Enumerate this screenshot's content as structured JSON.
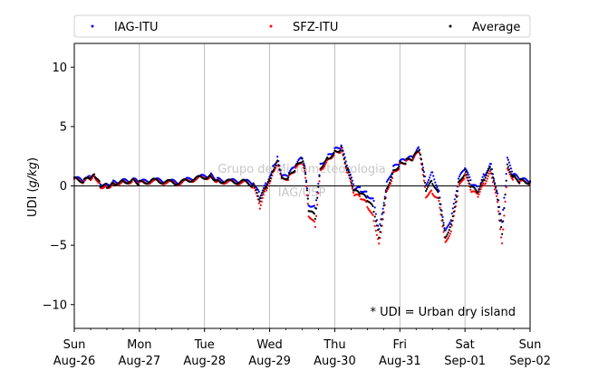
{
  "chart_data": {
    "type": "scatter",
    "ylabel": "UDI (g/kg)",
    "ylim": [
      -12,
      12
    ],
    "yticks": [
      -10,
      -5,
      0,
      5,
      10
    ],
    "xlim_days": [
      0,
      7
    ],
    "x_tick_labels": [
      {
        "day": "Sun",
        "date": "Aug-26"
      },
      {
        "day": "Mon",
        "date": "Aug-27"
      },
      {
        "day": "Tue",
        "date": "Aug-28"
      },
      {
        "day": "Wed",
        "date": "Aug-29"
      },
      {
        "day": "Thu",
        "date": "Aug-30"
      },
      {
        "day": "Fri",
        "date": "Aug-31"
      },
      {
        "day": "Sat",
        "date": "Sep-01"
      },
      {
        "day": "Sun",
        "date": "Sep-02"
      }
    ],
    "grid": "vertical",
    "legend_position": "top",
    "watermark": [
      "Grupo de Micrometeorologia",
      "IAG/USP"
    ],
    "annotation": "* UDI = Urban dry island",
    "series": [
      {
        "name": "IAG-ITU",
        "color": "#0000ff",
        "points": [
          [
            0.0,
            0.6
          ],
          [
            0.15,
            0.5
          ],
          [
            0.25,
            0.7
          ],
          [
            0.32,
            0.9
          ],
          [
            0.4,
            0.2
          ],
          [
            0.5,
            0.1
          ],
          [
            0.6,
            0.3
          ],
          [
            0.75,
            0.4
          ],
          [
            0.9,
            0.5
          ],
          [
            1.0,
            0.3
          ],
          [
            1.2,
            0.5
          ],
          [
            1.4,
            0.4
          ],
          [
            1.6,
            0.3
          ],
          [
            1.8,
            0.6
          ],
          [
            2.0,
            0.8
          ],
          [
            2.1,
            0.9
          ],
          [
            2.2,
            0.5
          ],
          [
            2.4,
            0.4
          ],
          [
            2.6,
            0.4
          ],
          [
            2.75,
            0.2
          ],
          [
            2.85,
            -0.8
          ],
          [
            2.95,
            0.2
          ],
          [
            3.0,
            0.8
          ],
          [
            3.05,
            1.6
          ],
          [
            3.12,
            2.3
          ],
          [
            3.2,
            0.7
          ],
          [
            3.3,
            1.0
          ],
          [
            3.4,
            1.7
          ],
          [
            3.5,
            2.4
          ],
          [
            3.55,
            1.3
          ],
          [
            3.6,
            -1.5
          ],
          [
            3.7,
            -1.8
          ],
          [
            3.78,
            1.8
          ],
          [
            3.9,
            2.5
          ],
          [
            4.0,
            3.0
          ],
          [
            4.1,
            3.3
          ],
          [
            4.2,
            1.5
          ],
          [
            4.3,
            -0.2
          ],
          [
            4.4,
            -0.3
          ],
          [
            4.5,
            -0.7
          ],
          [
            4.6,
            -1.2
          ],
          [
            4.68,
            -3.7
          ],
          [
            4.8,
            0.2
          ],
          [
            4.9,
            1.5
          ],
          [
            5.0,
            2.0
          ],
          [
            5.1,
            2.2
          ],
          [
            5.2,
            2.4
          ],
          [
            5.3,
            3.2
          ],
          [
            5.4,
            0.2
          ],
          [
            5.5,
            1.2
          ],
          [
            5.6,
            -0.5
          ],
          [
            5.7,
            -3.9
          ],
          [
            5.8,
            -2.5
          ],
          [
            5.9,
            0.5
          ],
          [
            6.0,
            1.5
          ],
          [
            6.1,
            0.2
          ],
          [
            6.2,
            -0.3
          ],
          [
            6.3,
            1.0
          ],
          [
            6.4,
            1.9
          ],
          [
            6.5,
            -0.7
          ],
          [
            6.57,
            -3.2
          ],
          [
            6.65,
            2.2
          ],
          [
            6.75,
            0.9
          ],
          [
            6.85,
            0.5
          ],
          [
            7.0,
            0.4
          ]
        ]
      },
      {
        "name": "SFZ-ITU",
        "color": "#ff0000",
        "points": [
          [
            0.0,
            0.5
          ],
          [
            0.15,
            0.4
          ],
          [
            0.25,
            0.6
          ],
          [
            0.32,
            0.8
          ],
          [
            0.4,
            0.0
          ],
          [
            0.5,
            -0.1
          ],
          [
            0.6,
            0.2
          ],
          [
            0.75,
            0.3
          ],
          [
            0.9,
            0.4
          ],
          [
            1.0,
            0.2
          ],
          [
            1.2,
            0.4
          ],
          [
            1.4,
            0.3
          ],
          [
            1.6,
            0.2
          ],
          [
            1.8,
            0.5
          ],
          [
            2.0,
            0.7
          ],
          [
            2.1,
            0.8
          ],
          [
            2.2,
            0.4
          ],
          [
            2.4,
            0.3
          ],
          [
            2.6,
            0.3
          ],
          [
            2.75,
            0.0
          ],
          [
            2.85,
            -1.8
          ],
          [
            2.95,
            -0.2
          ],
          [
            3.0,
            0.4
          ],
          [
            3.05,
            1.2
          ],
          [
            3.12,
            2.0
          ],
          [
            3.2,
            0.5
          ],
          [
            3.3,
            0.7
          ],
          [
            3.4,
            1.4
          ],
          [
            3.5,
            2.0
          ],
          [
            3.55,
            0.8
          ],
          [
            3.6,
            -2.4
          ],
          [
            3.7,
            -3.3
          ],
          [
            3.78,
            1.4
          ],
          [
            3.9,
            2.2
          ],
          [
            4.0,
            2.8
          ],
          [
            4.1,
            3.0
          ],
          [
            4.2,
            1.0
          ],
          [
            4.3,
            -0.8
          ],
          [
            4.4,
            -1.0
          ],
          [
            4.5,
            -1.6
          ],
          [
            4.6,
            -2.8
          ],
          [
            4.68,
            -4.8
          ],
          [
            4.8,
            -0.5
          ],
          [
            4.9,
            1.0
          ],
          [
            5.0,
            1.7
          ],
          [
            5.1,
            2.0
          ],
          [
            5.2,
            2.2
          ],
          [
            5.3,
            2.9
          ],
          [
            5.4,
            -0.8
          ],
          [
            5.5,
            -0.5
          ],
          [
            5.6,
            -1.2
          ],
          [
            5.7,
            -4.8
          ],
          [
            5.8,
            -3.5
          ],
          [
            5.9,
            -0.2
          ],
          [
            6.0,
            0.9
          ],
          [
            6.1,
            -0.5
          ],
          [
            6.2,
            -0.8
          ],
          [
            6.3,
            0.2
          ],
          [
            6.4,
            1.2
          ],
          [
            6.5,
            -1.3
          ],
          [
            6.57,
            -4.9
          ],
          [
            6.65,
            1.3
          ],
          [
            6.75,
            0.6
          ],
          [
            6.85,
            0.3
          ],
          [
            7.0,
            0.3
          ]
        ]
      },
      {
        "name": "Average",
        "color": "#000000",
        "points": [
          [
            0.0,
            0.55
          ],
          [
            0.15,
            0.45
          ],
          [
            0.25,
            0.65
          ],
          [
            0.32,
            0.85
          ],
          [
            0.4,
            0.1
          ],
          [
            0.5,
            0.0
          ],
          [
            0.6,
            0.25
          ],
          [
            0.75,
            0.35
          ],
          [
            0.9,
            0.45
          ],
          [
            1.0,
            0.25
          ],
          [
            1.2,
            0.45
          ],
          [
            1.4,
            0.35
          ],
          [
            1.6,
            0.25
          ],
          [
            1.8,
            0.55
          ],
          [
            2.0,
            0.75
          ],
          [
            2.1,
            0.85
          ],
          [
            2.2,
            0.45
          ],
          [
            2.4,
            0.35
          ],
          [
            2.6,
            0.35
          ],
          [
            2.75,
            0.1
          ],
          [
            2.85,
            -1.3
          ],
          [
            2.95,
            0.0
          ],
          [
            3.0,
            0.6
          ],
          [
            3.05,
            1.4
          ],
          [
            3.12,
            2.2
          ],
          [
            3.2,
            0.6
          ],
          [
            3.3,
            0.85
          ],
          [
            3.4,
            1.55
          ],
          [
            3.5,
            2.2
          ],
          [
            3.55,
            1.0
          ],
          [
            3.6,
            -2.0
          ],
          [
            3.7,
            -2.6
          ],
          [
            3.78,
            1.6
          ],
          [
            3.9,
            2.35
          ],
          [
            4.0,
            2.9
          ],
          [
            4.1,
            3.15
          ],
          [
            4.2,
            1.25
          ],
          [
            4.3,
            -0.5
          ],
          [
            4.4,
            -0.65
          ],
          [
            4.5,
            -1.15
          ],
          [
            4.6,
            -2.0
          ],
          [
            4.68,
            -4.2
          ],
          [
            4.8,
            -0.15
          ],
          [
            4.9,
            1.25
          ],
          [
            5.0,
            1.85
          ],
          [
            5.1,
            2.1
          ],
          [
            5.2,
            2.3
          ],
          [
            5.3,
            3.05
          ],
          [
            5.4,
            -0.3
          ],
          [
            5.5,
            0.35
          ],
          [
            5.6,
            -0.85
          ],
          [
            5.7,
            -4.3
          ],
          [
            5.8,
            -3.0
          ],
          [
            5.9,
            0.15
          ],
          [
            6.0,
            1.2
          ],
          [
            6.1,
            -0.15
          ],
          [
            6.2,
            -0.55
          ],
          [
            6.3,
            0.6
          ],
          [
            6.4,
            1.55
          ],
          [
            6.5,
            -1.0
          ],
          [
            6.57,
            -4.0
          ],
          [
            6.65,
            1.75
          ],
          [
            6.75,
            0.75
          ],
          [
            6.85,
            0.4
          ],
          [
            7.0,
            0.35
          ]
        ]
      }
    ]
  }
}
